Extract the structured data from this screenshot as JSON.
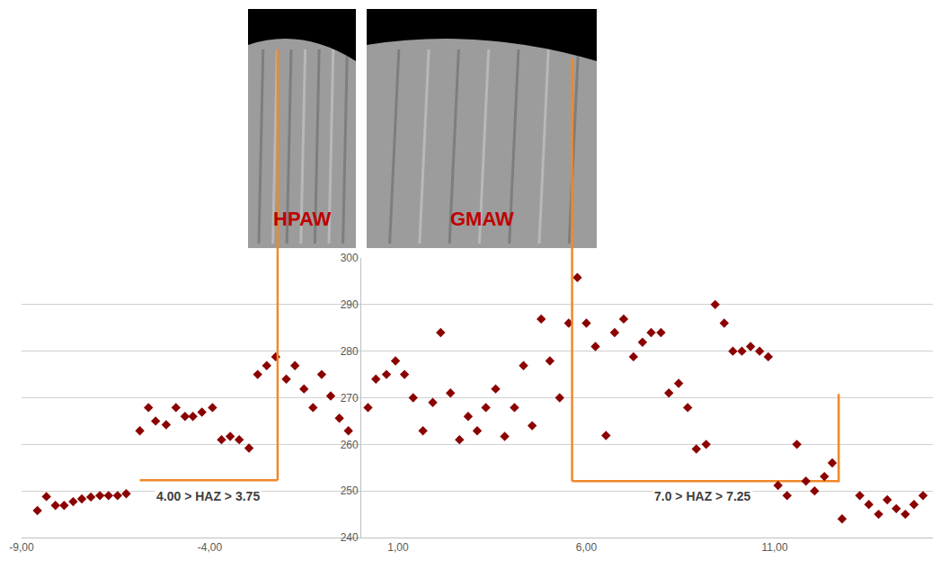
{
  "chart_data": {
    "type": "scatter",
    "marker": "diamond",
    "color": "#8b0000",
    "grid": true,
    "x": [
      -8.58,
      -8.34,
      -8.1,
      -7.87,
      -7.63,
      -7.4,
      -7.16,
      -6.92,
      -6.69,
      -6.45,
      -6.22,
      -5.86,
      -5.63,
      -5.44,
      -5.16,
      -4.9,
      -4.66,
      -4.45,
      -4.21,
      -3.93,
      -3.69,
      -3.46,
      -3.22,
      -2.96,
      -2.73,
      -2.49,
      -2.25,
      -1.97,
      -1.74,
      -1.5,
      -1.26,
      -1.03,
      -0.79,
      -0.56,
      -0.32,
      0.2,
      0.41,
      0.69,
      0.93,
      1.17,
      1.4,
      1.66,
      1.92,
      2.13,
      2.39,
      2.63,
      2.86,
      3.1,
      3.33,
      3.59,
      3.83,
      4.09,
      4.33,
      4.56,
      4.8,
      5.03,
      5.29,
      5.53,
      5.76,
      6.0,
      6.24,
      6.52,
      6.75,
      6.99,
      7.25,
      7.49,
      7.72,
      7.98,
      8.19,
      8.45,
      8.69,
      8.92,
      9.18,
      9.42,
      9.66,
      9.89,
      10.13,
      10.36,
      10.6,
      10.83,
      11.09,
      11.33,
      11.59,
      11.83,
      12.06,
      12.32,
      12.53,
      12.79,
      13.26,
      13.5,
      13.76,
      13.99,
      14.23,
      14.47,
      14.7,
      14.94
    ],
    "values": [
      245.8,
      248.8,
      246.9,
      246.9,
      247.7,
      248.3,
      248.7,
      249.0,
      249.0,
      249.0,
      249.4,
      262.9,
      267.9,
      265.0,
      264.2,
      267.9,
      266.0,
      266.0,
      266.9,
      267.9,
      261.0,
      261.7,
      261.0,
      259.2,
      275.0,
      276.9,
      278.8,
      274.0,
      276.9,
      271.9,
      267.9,
      275.0,
      270.4,
      265.6,
      262.9,
      267.9,
      274.0,
      275.0,
      277.9,
      275.0,
      270.0,
      262.9,
      269.0,
      284.0,
      271.0,
      261.0,
      266.0,
      262.9,
      267.9,
      271.9,
      261.7,
      267.9,
      276.9,
      264.0,
      286.9,
      277.9,
      270.0,
      286.0,
      295.8,
      286.0,
      281.0,
      261.9,
      284.0,
      286.9,
      278.8,
      281.9,
      284.0,
      284.0,
      271.0,
      273.1,
      267.9,
      259.0,
      260.0,
      290.0,
      286.0,
      280.0,
      280.0,
      281.0,
      280.0,
      278.8,
      251.2,
      249.0,
      260.0,
      252.1,
      250.0,
      253.1,
      256.0,
      244.0,
      249.0,
      247.1,
      245.0,
      248.1,
      246.2,
      245.0,
      247.1,
      249.0
    ],
    "xlim": [
      -9,
      15.2
    ],
    "xticks": [
      {
        "value": -9,
        "label": "-9,00"
      },
      {
        "value": -4,
        "label": "-4,00"
      },
      {
        "value": 1,
        "label": "1,00"
      },
      {
        "value": 6,
        "label": "6,00"
      },
      {
        "value": 11,
        "label": "11,00"
      }
    ],
    "ylim": [
      240,
      300
    ],
    "yticks": [
      240,
      250,
      260,
      270,
      280,
      290,
      300
    ],
    "brackets": [
      {
        "label": "HPAW",
        "path": [
          [
            -5.86,
            252.3
          ],
          [
            -2.2,
            252.3
          ]
        ]
      },
      {
        "label": "GMAW",
        "path": [
          [
            12.7,
            270.8
          ],
          [
            12.7,
            252.1
          ],
          [
            5.62,
            252.1
          ]
        ]
      }
    ],
    "annotations": [
      {
        "text": "4.00 > HAZ > 3.75",
        "x": -4.05,
        "y": 248.8
      },
      {
        "text": "7.0 > HAZ > 7.25",
        "x": 9.09,
        "y": 248.8
      }
    ]
  }
}
